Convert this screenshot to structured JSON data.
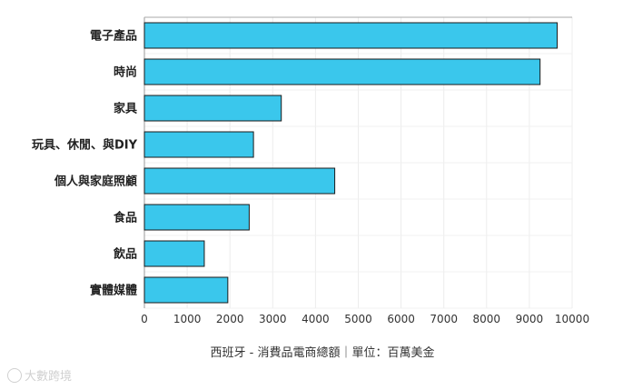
{
  "chart_data": {
    "type": "bar",
    "orientation": "horizontal",
    "categories": [
      "電子產品",
      "時尚",
      "家具",
      "玩具、休閒、與DIY",
      "個人與家庭照顧",
      "食品",
      "飲品",
      "實體媒體"
    ],
    "values": [
      9650,
      9250,
      3200,
      2550,
      4450,
      2450,
      1400,
      1950
    ],
    "xlim": [
      0,
      10000
    ],
    "xticks": [
      0,
      1000,
      2000,
      3000,
      4000,
      5000,
      6000,
      7000,
      8000,
      9000,
      10000
    ],
    "caption": "西班牙 - 消費品電商總額｜單位：百萬美金",
    "grid": true,
    "bar_color": "#3ac7ec",
    "bar_border_color": "#1a1a1a"
  },
  "watermark": {
    "text": "大數跨境"
  }
}
